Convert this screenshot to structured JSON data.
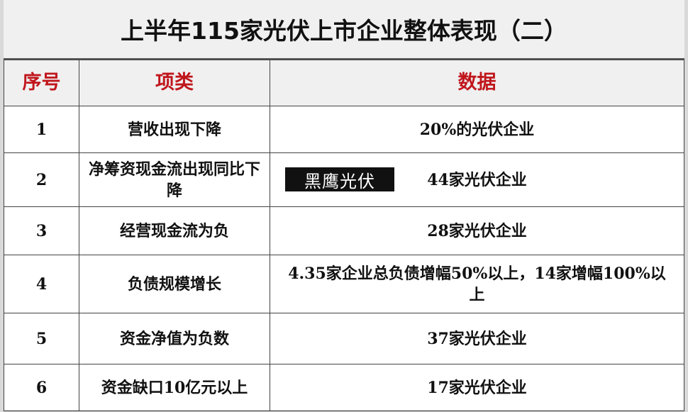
{
  "title": "上半年115家光伏上市企业整体表现（二）",
  "headers": [
    "序号",
    "项类",
    "数据"
  ],
  "rows": [
    {
      "no": "1",
      "item": "营收出现下降",
      "data": "20%的光伏企业"
    },
    {
      "no": "2",
      "item": "净筹资现金流出现同比下降",
      "data": "44家光伏企业"
    },
    {
      "no": "3",
      "item": "经营现金流为负",
      "data": "28家光伏企业"
    },
    {
      "no": "4",
      "item": "负债规模增长",
      "data": "4.35家企业总负债增幅50%以上，14家增幅100%以上"
    },
    {
      "no": "5",
      "item": "资金净值为负数",
      "data": "37家光伏企业"
    },
    {
      "no": "6",
      "item": "资金缺口10亿元以上",
      "data": "17家光伏企业"
    }
  ],
  "watermark": "黑鹰光伏",
  "colors": {
    "header_text": "#c0161c",
    "header_bg": "#f0f0f0"
  }
}
